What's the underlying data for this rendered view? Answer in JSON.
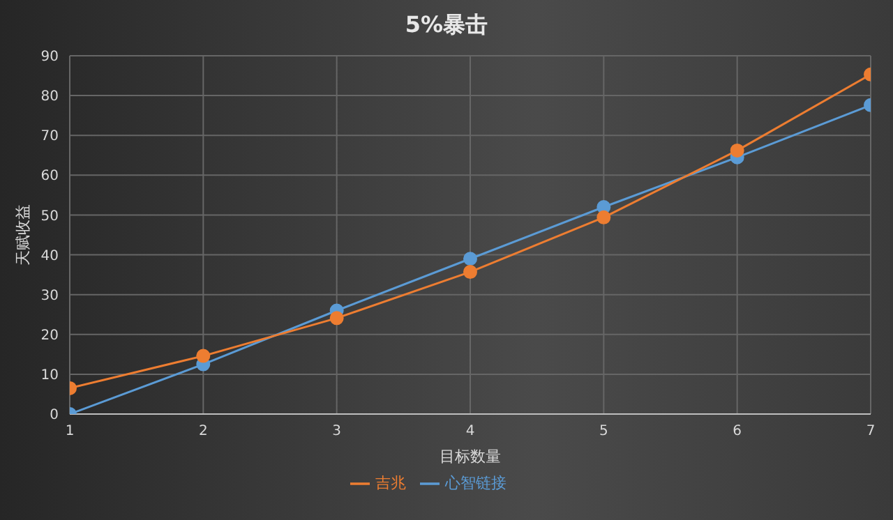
{
  "chart_data": {
    "type": "line",
    "title": "5%暴击",
    "xlabel": "目标数量",
    "ylabel": "天赋收益",
    "x": [
      1,
      2,
      3,
      4,
      5,
      6,
      7
    ],
    "series": [
      {
        "name": "心智链接",
        "color": "#5b9bd5",
        "values": [
          0,
          12.5,
          26,
          39,
          52,
          64.5,
          77.6
        ]
      },
      {
        "name": "吉兆",
        "color": "#ed7d31",
        "values": [
          6.5,
          14.6,
          24.1,
          35.7,
          49.4,
          66.2,
          85.3
        ]
      }
    ],
    "xlim": [
      1,
      7
    ],
    "xticks": [
      1,
      2,
      3,
      4,
      5,
      6,
      7
    ],
    "ylim": [
      0,
      90
    ],
    "yticks": [
      0,
      10,
      20,
      30,
      40,
      50,
      60,
      70,
      80,
      90
    ],
    "grid": true,
    "legend": "bottom",
    "marker": "circle",
    "line_style": "solid"
  }
}
